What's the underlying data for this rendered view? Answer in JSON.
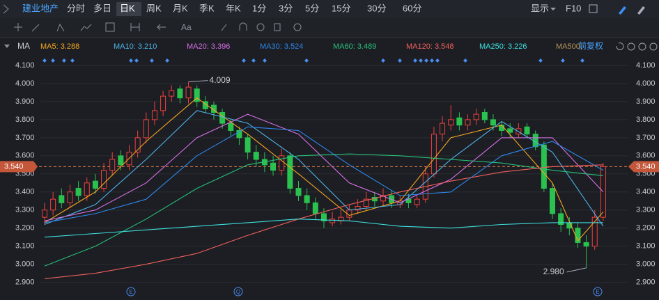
{
  "toolbar": {
    "stock": "建业地产",
    "tabs": [
      "分时",
      "多日",
      "日K",
      "周K",
      "月K",
      "季K",
      "年K",
      "1分",
      "3分",
      "5分",
      "15分",
      "30分",
      "60分"
    ],
    "active": "日K",
    "display": "显示",
    "f10": "F10",
    "indicator": "MA",
    "adjust": "前复权"
  },
  "chart_data": {
    "type": "candlestick",
    "open": [
      3.26,
      3.3,
      3.38,
      3.34,
      3.42,
      3.38,
      3.46,
      3.42,
      3.52,
      3.6,
      3.55,
      3.62,
      3.7,
      3.8,
      3.85,
      3.93,
      3.97,
      3.92,
      3.97,
      3.9,
      3.88,
      3.84,
      3.78,
      3.74,
      3.7,
      3.62,
      3.58,
      3.56,
      3.52,
      3.6,
      3.42,
      3.38,
      3.34,
      3.28,
      3.23,
      3.24,
      3.26,
      3.3,
      3.32,
      3.37,
      3.35,
      3.38,
      3.33,
      3.36,
      3.33,
      3.36,
      3.5,
      3.72,
      3.77,
      3.81,
      3.77,
      3.8,
      3.84,
      3.8,
      3.77,
      3.75,
      3.72,
      3.76,
      3.72,
      3.66,
      3.42,
      3.28,
      3.23,
      3.2,
      3.12,
      3.1,
      3.26
    ],
    "high": [
      3.34,
      3.4,
      3.42,
      3.44,
      3.46,
      3.48,
      3.5,
      3.56,
      3.62,
      3.63,
      3.66,
      3.74,
      3.84,
      3.9,
      3.96,
      3.99,
      3.99,
      4.009,
      3.99,
      3.93,
      3.9,
      3.86,
      3.8,
      3.76,
      3.72,
      3.66,
      3.62,
      3.6,
      3.64,
      3.62,
      3.46,
      3.42,
      3.37,
      3.31,
      3.29,
      3.3,
      3.33,
      3.36,
      3.4,
      3.4,
      3.42,
      3.41,
      3.38,
      3.39,
      3.38,
      3.54,
      3.76,
      3.82,
      3.88,
      3.84,
      3.83,
      3.86,
      3.86,
      3.83,
      3.79,
      3.78,
      3.78,
      3.78,
      3.74,
      3.68,
      3.45,
      3.31,
      3.26,
      3.23,
      3.16,
      3.3,
      3.56
    ],
    "low": [
      3.22,
      3.27,
      3.31,
      3.31,
      3.35,
      3.35,
      3.39,
      3.4,
      3.49,
      3.52,
      3.52,
      3.59,
      3.67,
      3.77,
      3.82,
      3.9,
      3.89,
      3.89,
      3.87,
      3.84,
      3.8,
      3.75,
      3.71,
      3.66,
      3.58,
      3.54,
      3.51,
      3.49,
      3.49,
      3.39,
      3.35,
      3.3,
      3.25,
      3.2,
      3.21,
      3.22,
      3.24,
      3.28,
      3.3,
      3.32,
      3.32,
      3.31,
      3.31,
      3.31,
      3.31,
      3.34,
      3.48,
      3.68,
      3.74,
      3.74,
      3.74,
      3.77,
      3.78,
      3.74,
      3.71,
      3.7,
      3.7,
      3.7,
      3.63,
      3.4,
      3.25,
      3.18,
      3.16,
      3.09,
      2.98,
      3.08,
      3.24
    ],
    "close": [
      3.3,
      3.36,
      3.34,
      3.4,
      3.38,
      3.45,
      3.42,
      3.52,
      3.58,
      3.55,
      3.62,
      3.7,
      3.8,
      3.85,
      3.93,
      3.96,
      3.92,
      3.98,
      3.9,
      3.86,
      3.84,
      3.78,
      3.74,
      3.7,
      3.62,
      3.58,
      3.55,
      3.52,
      3.6,
      3.42,
      3.38,
      3.34,
      3.28,
      3.24,
      3.25,
      3.26,
      3.3,
      3.32,
      3.36,
      3.35,
      3.38,
      3.34,
      3.35,
      3.34,
      3.36,
      3.5,
      3.72,
      3.78,
      3.8,
      3.77,
      3.8,
      3.83,
      3.8,
      3.77,
      3.74,
      3.73,
      3.75,
      3.72,
      3.65,
      3.42,
      3.28,
      3.22,
      3.2,
      3.12,
      3.1,
      3.26,
      3.54
    ],
    "up_color": "#f0413c",
    "down_color": "#2bc14f",
    "ylim": [
      2.86,
      4.15
    ],
    "yticks": [
      {
        "value": 4.1,
        "label": "4.100"
      },
      {
        "value": 4.0,
        "label": "4.000"
      },
      {
        "value": 3.9,
        "label": "3.900"
      },
      {
        "value": 3.8,
        "label": "3.800"
      },
      {
        "value": 3.7,
        "label": "3.700"
      },
      {
        "value": 3.6,
        "label": "3.600"
      },
      {
        "value": 3.5,
        "label": "3.500"
      },
      {
        "value": 3.4,
        "label": "3.400"
      },
      {
        "value": 3.3,
        "label": "3.300"
      },
      {
        "value": 3.2,
        "label": "3.200"
      },
      {
        "value": 3.1,
        "label": "3.100"
      },
      {
        "value": 3.0,
        "label": "3.000"
      },
      {
        "value": 2.9,
        "label": "2.900"
      }
    ],
    "last_price": {
      "value": 3.54,
      "label": "3.540"
    },
    "annotations": [
      {
        "index": 17,
        "value": 4.009,
        "label": "4.009"
      },
      {
        "index": 64,
        "value": 2.98,
        "label": "2.980"
      }
    ],
    "event_markers": [
      "E",
      "Q",
      "E"
    ],
    "series": [
      {
        "name": "MA5: 3.288",
        "color": "#f5a623",
        "x": [
          0,
          6,
          12,
          18,
          24,
          30,
          36,
          42,
          48,
          54,
          60,
          63,
          66
        ],
        "values": [
          3.23,
          3.4,
          3.68,
          3.92,
          3.72,
          3.5,
          3.27,
          3.35,
          3.7,
          3.77,
          3.45,
          3.13,
          3.29
        ]
      },
      {
        "name": "MA10: 3.210",
        "color": "#4fb3e6",
        "x": [
          0,
          6,
          12,
          18,
          24,
          30,
          36,
          42,
          48,
          54,
          60,
          66
        ],
        "values": [
          3.22,
          3.33,
          3.58,
          3.85,
          3.78,
          3.58,
          3.3,
          3.33,
          3.58,
          3.79,
          3.62,
          3.21
        ]
      },
      {
        "name": "MA20: 3.396",
        "color": "#d86fe6",
        "x": [
          0,
          6,
          12,
          18,
          24,
          30,
          36,
          42,
          48,
          54,
          60,
          66
        ],
        "values": [
          3.24,
          3.3,
          3.45,
          3.7,
          3.83,
          3.72,
          3.45,
          3.34,
          3.47,
          3.7,
          3.7,
          3.4
        ]
      },
      {
        "name": "MA30: 3.524",
        "color": "#2e86e8",
        "x": [
          0,
          6,
          12,
          18,
          24,
          30,
          36,
          42,
          48,
          54,
          60,
          66
        ],
        "values": [
          3.23,
          3.28,
          3.36,
          3.6,
          3.76,
          3.74,
          3.55,
          3.38,
          3.4,
          3.6,
          3.68,
          3.52
        ]
      },
      {
        "name": "MA60: 3.489",
        "color": "#27c17a",
        "x": [
          0,
          6,
          12,
          18,
          24,
          30,
          36,
          42,
          48,
          54,
          60,
          66
        ],
        "values": [
          2.99,
          3.1,
          3.25,
          3.42,
          3.55,
          3.6,
          3.61,
          3.6,
          3.58,
          3.56,
          3.52,
          3.49
        ]
      },
      {
        "name": "MA120: 3.548",
        "color": "#f0605d",
        "x": [
          0,
          6,
          12,
          18,
          24,
          30,
          36,
          42,
          48,
          54,
          60,
          66
        ],
        "values": [
          2.92,
          2.95,
          3.0,
          3.06,
          3.16,
          3.25,
          3.33,
          3.4,
          3.46,
          3.51,
          3.54,
          3.55
        ]
      },
      {
        "name": "MA250: 3.226",
        "color": "#3fe0e0",
        "x": [
          0,
          6,
          12,
          18,
          24,
          30,
          36,
          42,
          48,
          54,
          60,
          66
        ],
        "values": [
          3.15,
          3.17,
          3.19,
          3.21,
          3.23,
          3.25,
          3.24,
          3.21,
          3.2,
          3.22,
          3.23,
          3.23
        ]
      },
      {
        "name": "MA500:",
        "color": "#b8955a",
        "x": [],
        "values": []
      }
    ]
  }
}
